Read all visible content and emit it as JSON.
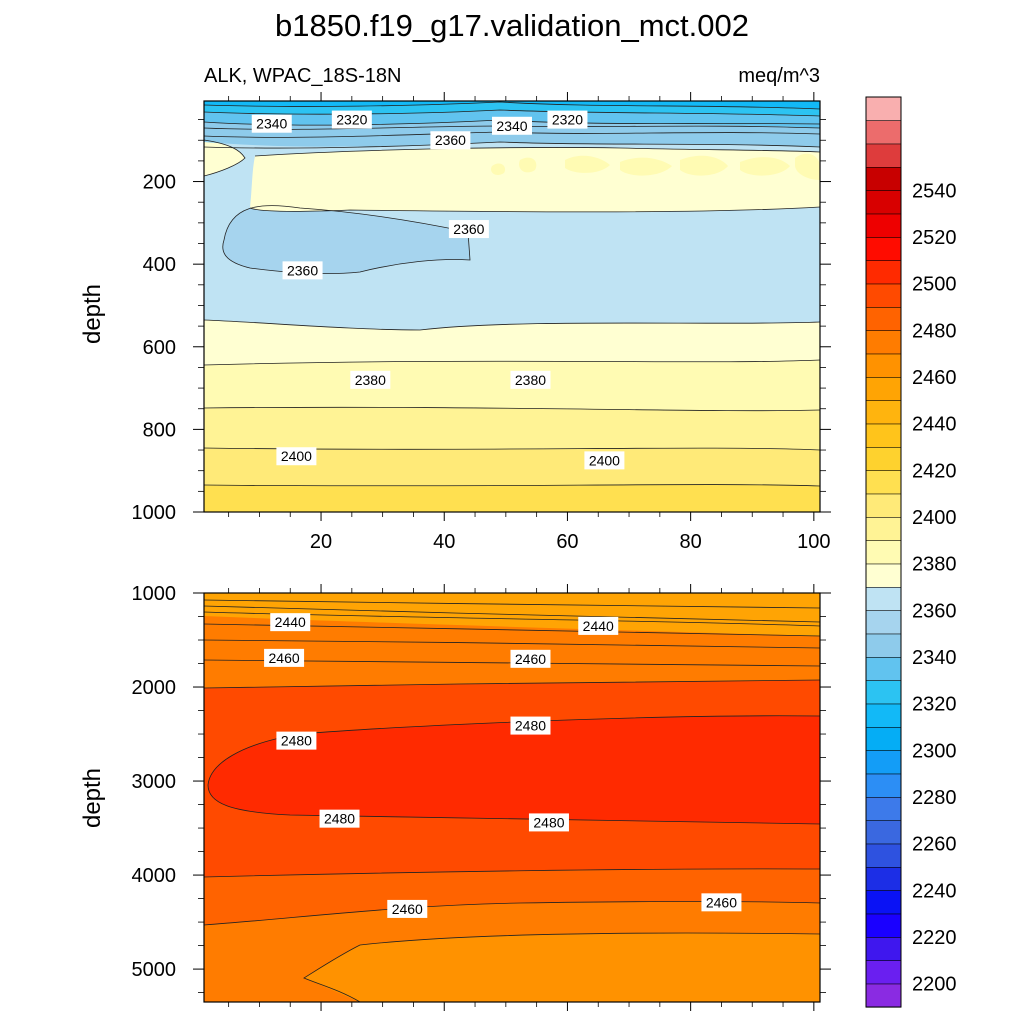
{
  "chart_data": {
    "type": "contour",
    "title": "b1850.f19_g17.validation_mct.002",
    "subtitle_left": "ALK, WPAC_18S-18N",
    "subtitle_right": "meq/m^3",
    "colorbar": {
      "levels": [
        2200,
        2210,
        2220,
        2230,
        2240,
        2250,
        2260,
        2270,
        2280,
        2290,
        2300,
        2310,
        2320,
        2330,
        2340,
        2350,
        2360,
        2370,
        2380,
        2390,
        2400,
        2410,
        2420,
        2430,
        2440,
        2450,
        2460,
        2470,
        2480,
        2490,
        2500,
        2510,
        2520,
        2530,
        2540,
        2550
      ],
      "labels": [
        "2200",
        "2220",
        "2240",
        "2260",
        "2280",
        "2300",
        "2320",
        "2340",
        "2360",
        "2380",
        "2400",
        "2420",
        "2440",
        "2460",
        "2480",
        "2500",
        "2520",
        "2540"
      ],
      "colors": [
        "#8a2be2",
        "#6a1ff0",
        "#3f17ee",
        "#1a00ff",
        "#0a12f5",
        "#1c2ee6",
        "#2e52e0",
        "#3a68e0",
        "#3d7aea",
        "#2c8ef5",
        "#139df7",
        "#05adf5",
        "#12b9f7",
        "#2cc3f2",
        "#61c3ef",
        "#8ecbeb",
        "#a6d4ee",
        "#bfe3f3",
        "#ffffd2",
        "#fffbb3",
        "#fff395",
        "#ffea78",
        "#ffe050",
        "#fed22e",
        "#ffc41b",
        "#ffb40e",
        "#ffa404",
        "#ff9200",
        "#ff7c00",
        "#ff6300",
        "#ff4a00",
        "#ff2a00",
        "#ff0c00",
        "#ee0000",
        "#d80000",
        "#c80000",
        "#de3c3c",
        "#ec6c6c",
        "#f9afaf"
      ]
    },
    "panels": [
      {
        "name": "upper",
        "xlim": [
          1,
          101
        ],
        "ylim": [
          1000,
          5
        ],
        "xticks": [
          "20",
          "40",
          "60",
          "80",
          "100"
        ],
        "yticks": [
          "200",
          "400",
          "600",
          "800",
          "1000"
        ],
        "ylabel": "depth",
        "contour_labels": [
          {
            "text": "2340",
            "x": 12,
            "y": 60
          },
          {
            "text": "2320",
            "x": 25,
            "y": 50
          },
          {
            "text": "2340",
            "x": 51,
            "y": 65
          },
          {
            "text": "2320",
            "x": 60,
            "y": 50
          },
          {
            "text": "2360",
            "x": 41,
            "y": 100
          },
          {
            "text": "2360",
            "x": 44,
            "y": 315
          },
          {
            "text": "2360",
            "x": 17,
            "y": 415
          },
          {
            "text": "2380",
            "x": 28,
            "y": 680
          },
          {
            "text": "2380",
            "x": 54,
            "y": 680
          },
          {
            "text": "2400",
            "x": 16,
            "y": 865
          },
          {
            "text": "2400",
            "x": 66,
            "y": 875
          }
        ]
      },
      {
        "name": "lower",
        "xlim": [
          1,
          101
        ],
        "ylim": [
          5350,
          1000
        ],
        "xticks": [
          "20",
          "40",
          "60",
          "80",
          "100"
        ],
        "yticks": [
          "1000",
          "2000",
          "3000",
          "4000",
          "5000"
        ],
        "ylabel": "depth",
        "contour_labels": [
          {
            "text": "2440",
            "x": 15,
            "y": 1310
          },
          {
            "text": "2440",
            "x": 65,
            "y": 1350
          },
          {
            "text": "2460",
            "x": 14,
            "y": 1690
          },
          {
            "text": "2460",
            "x": 54,
            "y": 1700
          },
          {
            "text": "2480",
            "x": 16,
            "y": 2570
          },
          {
            "text": "2480",
            "x": 54,
            "y": 2410
          },
          {
            "text": "2480",
            "x": 23,
            "y": 3400
          },
          {
            "text": "2480",
            "x": 57,
            "y": 3440
          },
          {
            "text": "2460",
            "x": 34,
            "y": 4360
          },
          {
            "text": "2460",
            "x": 85,
            "y": 4290
          }
        ]
      }
    ]
  }
}
